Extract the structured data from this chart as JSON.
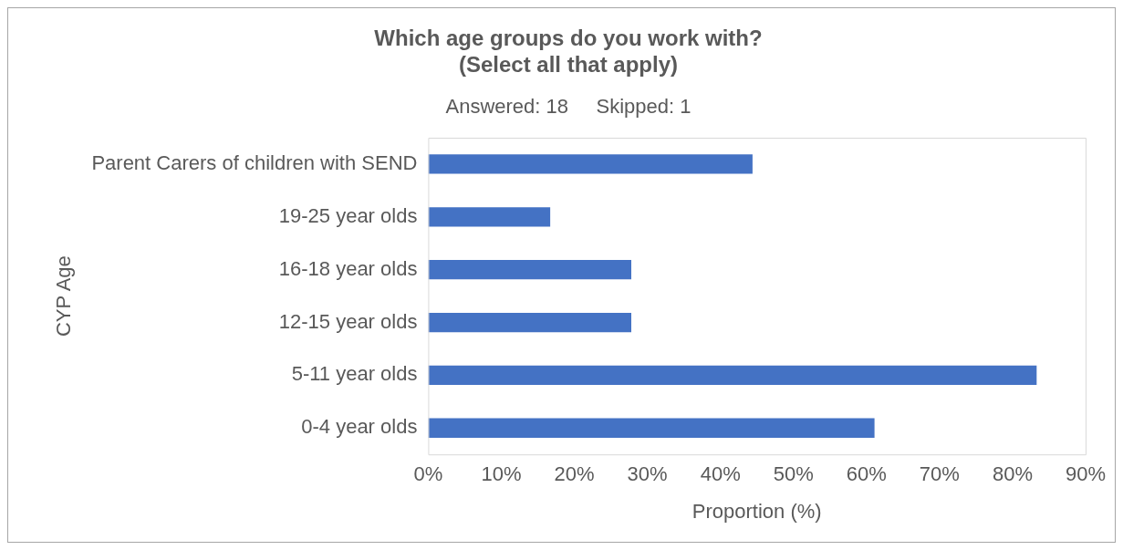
{
  "chart_data": {
    "type": "bar",
    "orientation": "horizontal",
    "title": "Which age groups do you work with?\n(Select all that apply)",
    "subtitle": "Answered: 18     Skipped: 1",
    "xlabel": "Proportion (%)",
    "ylabel": "CYP Age",
    "categories": [
      "Parent Carers of children with SEND",
      "19-25 year olds",
      "16-18 year olds",
      "12-15 year olds",
      "5-11 year olds",
      "0-4 year olds"
    ],
    "values": [
      44.4,
      16.7,
      27.8,
      27.8,
      83.3,
      61.1
    ],
    "color": "#4472c4",
    "xlim": [
      0,
      90
    ],
    "xticks": [
      {
        "value": 0,
        "label": "0%"
      },
      {
        "value": 10,
        "label": "10%"
      },
      {
        "value": 20,
        "label": "20%"
      },
      {
        "value": 30,
        "label": "30%"
      },
      {
        "value": 40,
        "label": "40%"
      },
      {
        "value": 50,
        "label": "50%"
      },
      {
        "value": 60,
        "label": "60%"
      },
      {
        "value": 70,
        "label": "70%"
      },
      {
        "value": 80,
        "label": "80%"
      },
      {
        "value": 90,
        "label": "90%"
      }
    ]
  }
}
